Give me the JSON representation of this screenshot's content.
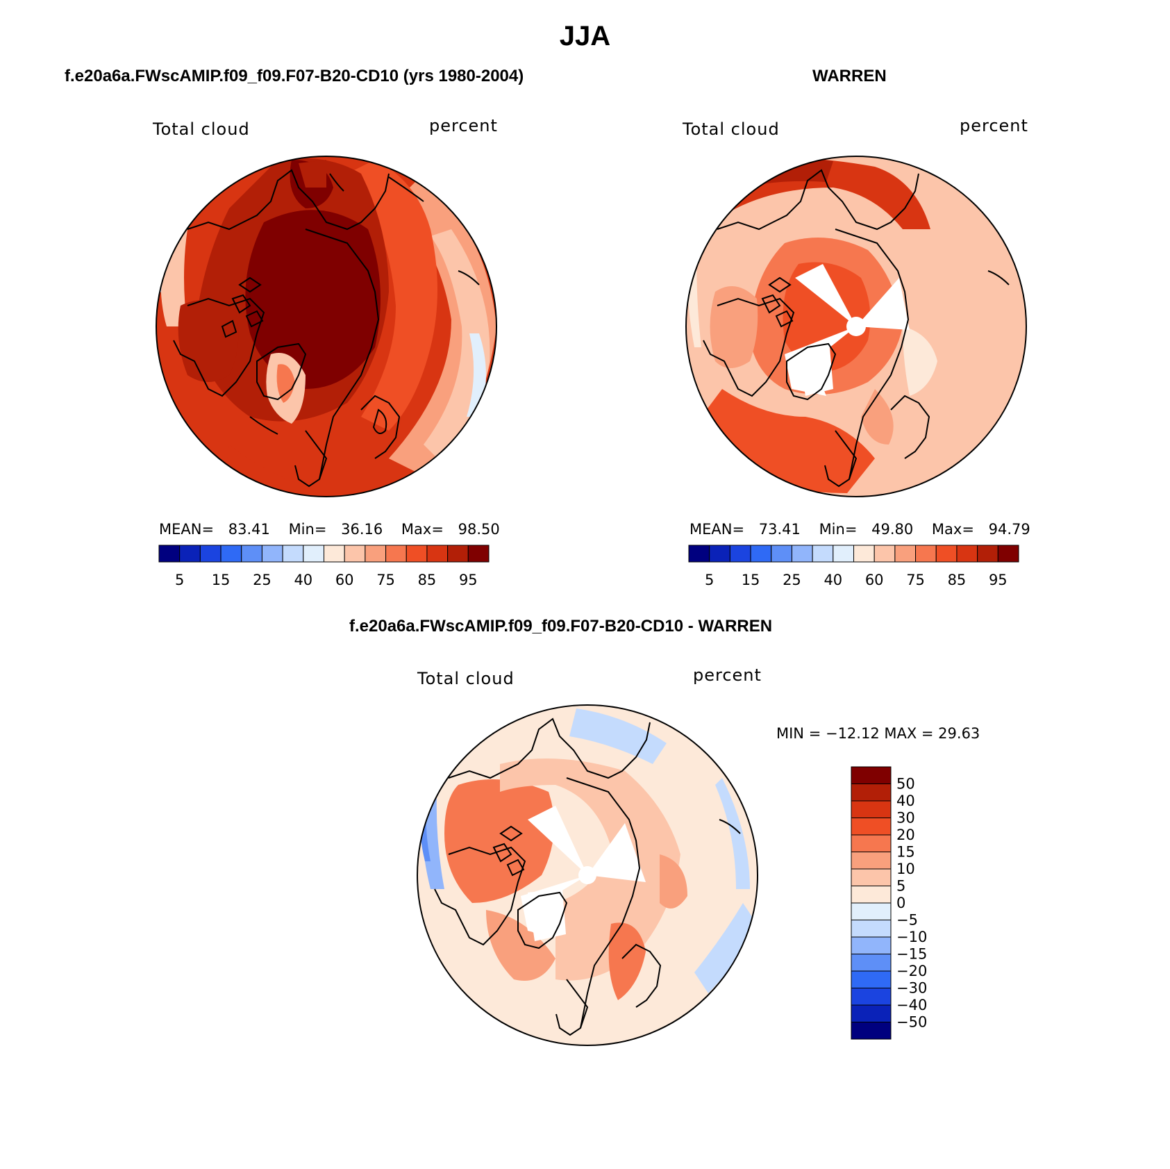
{
  "figure": {
    "title": "JJA",
    "diff_subtitle": "f.e20a6a.FWscAMIP.f09_f09.F07-B20-CD10 - WARREN"
  },
  "panels": [
    {
      "id": "model",
      "subtitle": "f.e20a6a.FWscAMIP.f09_f09.F07-B20-CD10 (yrs 1980-2004)",
      "left_label": "Total cloud",
      "right_label": "percent",
      "mean_label": "MEAN=",
      "mean_value": "83.41",
      "min_label": "Min=",
      "min_value": "36.16",
      "max_label": "Max=",
      "max_value": "98.50"
    },
    {
      "id": "obs",
      "subtitle": "WARREN",
      "left_label": "Total cloud",
      "right_label": "percent",
      "mean_label": "MEAN=",
      "mean_value": "73.41",
      "min_label": "Min=",
      "min_value": "49.80",
      "max_label": "Max=",
      "max_value": "94.79"
    },
    {
      "id": "diff",
      "left_label": "Total cloud",
      "right_label": "percent",
      "minmax_text": "MIN = −12.12 MAX =   29.63"
    }
  ],
  "colorbar_abs": {
    "colors": [
      "#00007f",
      "#0a22b8",
      "#1b44e0",
      "#2f6af5",
      "#5e8ff7",
      "#91b5fb",
      "#c4dbfd",
      "#e1effc",
      "#fde9d9",
      "#fcc5aa",
      "#f9a07d",
      "#f6774f",
      "#ef4f25",
      "#d83512",
      "#b21f07",
      "#7f0000"
    ],
    "tick_labels": [
      "5",
      "15",
      "25",
      "40",
      "60",
      "75",
      "85",
      "95"
    ]
  },
  "colorbar_diff": {
    "colors": [
      "#7f0000",
      "#b21f07",
      "#d83512",
      "#ef4f25",
      "#f6774f",
      "#f9a07d",
      "#fcc5aa",
      "#fde9d9",
      "#e1effc",
      "#c4dbfd",
      "#91b5fb",
      "#5e8ff7",
      "#2f6af5",
      "#1b44e0",
      "#0a22b8",
      "#00007f"
    ],
    "tick_labels": [
      "50",
      "40",
      "30",
      "20",
      "15",
      "10",
      "5",
      "0",
      "−5",
      "−10",
      "−15",
      "−20",
      "−30",
      "−40",
      "−50"
    ]
  },
  "chart_data": [
    {
      "type": "heatmap",
      "title": "f.e20a6a.FWscAMIP.f09_f09.F07-B20-CD10 (yrs 1980-2004)",
      "variable": "Total cloud",
      "units": "percent",
      "projection": "north polar stereographic",
      "mean": 83.41,
      "min": 36.16,
      "max": 98.5,
      "contour_levels": [
        5,
        10,
        15,
        20,
        25,
        30,
        40,
        50,
        60,
        65,
        70,
        75,
        80,
        85,
        90,
        95
      ]
    },
    {
      "type": "heatmap",
      "title": "WARREN",
      "variable": "Total cloud",
      "units": "percent",
      "projection": "north polar stereographic",
      "mean": 73.41,
      "min": 49.8,
      "max": 94.79,
      "contour_levels": [
        5,
        10,
        15,
        20,
        25,
        30,
        40,
        50,
        60,
        65,
        70,
        75,
        80,
        85,
        90,
        95
      ]
    },
    {
      "type": "heatmap",
      "title": "f.e20a6a.FWscAMIP.f09_f09.F07-B20-CD10 - WARREN",
      "variable": "Total cloud",
      "units": "percent",
      "projection": "north polar stereographic",
      "min": -12.12,
      "max": 29.63,
      "contour_levels": [
        -50,
        -40,
        -30,
        -20,
        -15,
        -10,
        -5,
        0,
        5,
        10,
        15,
        20,
        30,
        40,
        50
      ]
    }
  ]
}
